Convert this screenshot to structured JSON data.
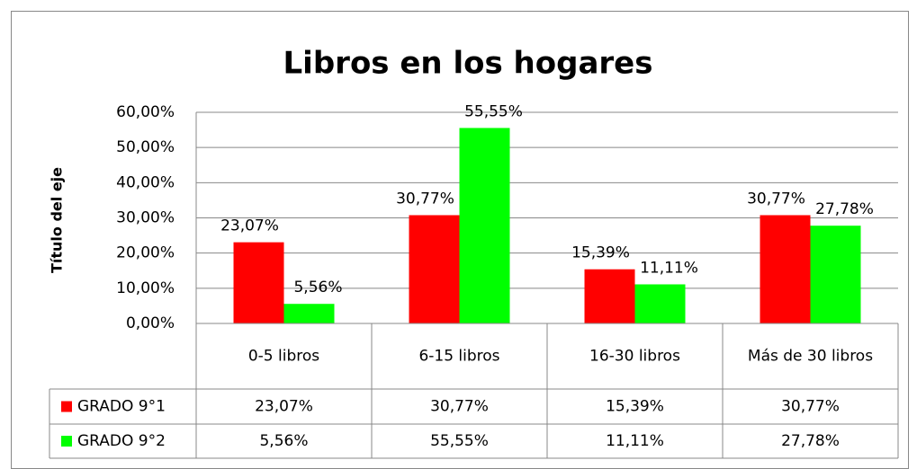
{
  "chart_data": {
    "type": "bar",
    "title": "Libros en los hogares",
    "y_axis_label": "Título del eje",
    "categories": [
      "0-5 libros",
      "6-15 libros",
      "16-30 libros",
      "Más de 30 libros"
    ],
    "series": [
      {
        "name": "GRADO 9°1",
        "color": "#ff0000",
        "values": [
          23.07,
          30.77,
          15.39,
          30.77
        ],
        "value_labels": [
          "23,07%",
          "30,77%",
          "15,39%",
          "30,77%"
        ]
      },
      {
        "name": "GRADO 9°2",
        "color": "#00ff00",
        "values": [
          5.56,
          55.55,
          11.11,
          27.78
        ],
        "value_labels": [
          "5,56%",
          "55,55%",
          "11,11%",
          "27,78%"
        ]
      }
    ],
    "ylim": [
      0,
      60
    ],
    "yticks": [
      {
        "value": 0,
        "label": "0,00%"
      },
      {
        "value": 10,
        "label": "10,00%"
      },
      {
        "value": 20,
        "label": "20,00%"
      },
      {
        "value": 30,
        "label": "30,00%"
      },
      {
        "value": 40,
        "label": "40,00%"
      },
      {
        "value": 50,
        "label": "50,00%"
      },
      {
        "value": 60,
        "label": "60,00%"
      }
    ],
    "grid": true,
    "data_table": true
  }
}
